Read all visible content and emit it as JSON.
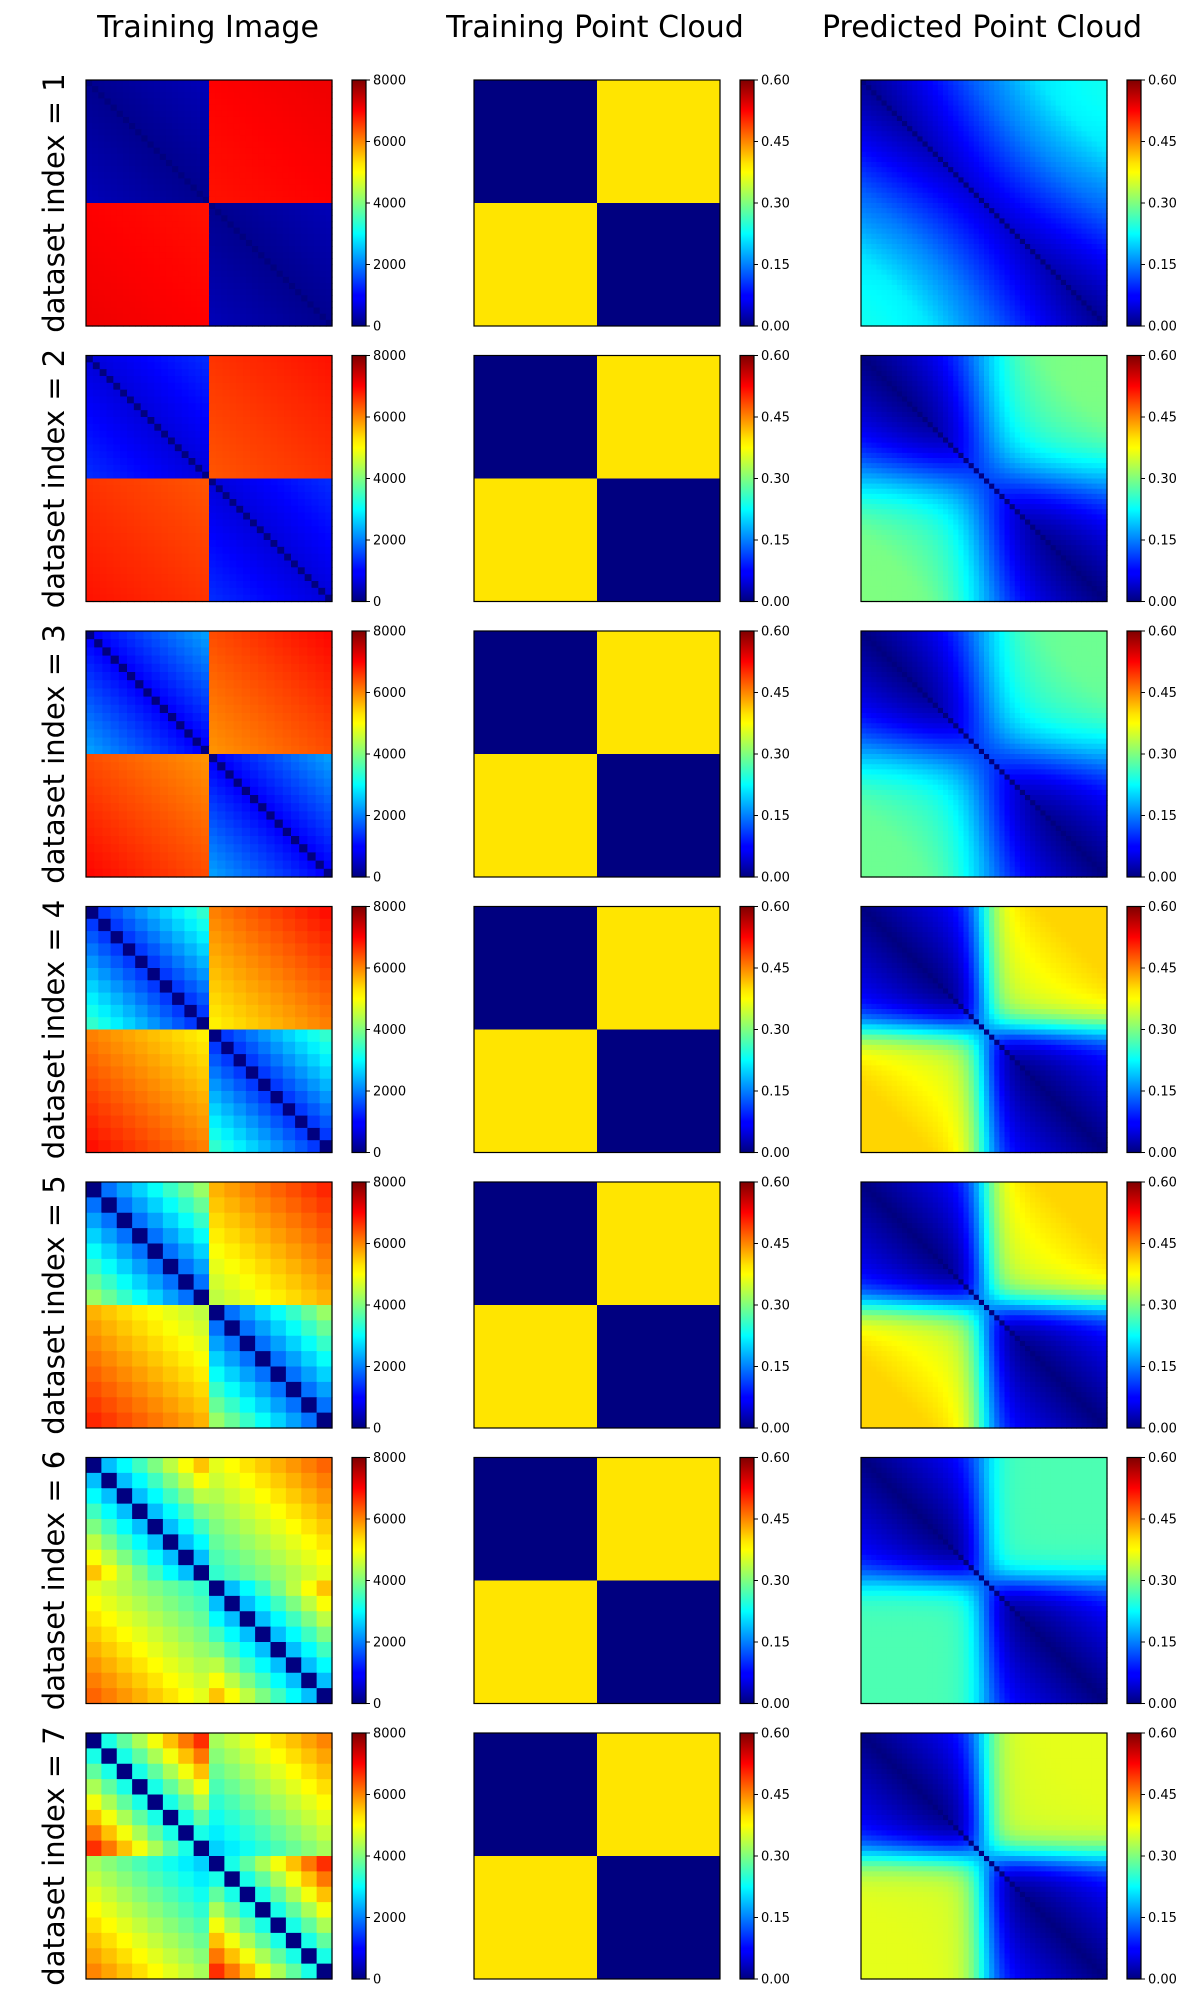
{
  "chart_data": {
    "type": "heatmap",
    "grid": false,
    "columns": [
      {
        "title": "Training Image",
        "colormap": "jet",
        "range": [
          0,
          8000
        ],
        "colorbar_ticks": [
          "0",
          "2000",
          "4000",
          "6000",
          "8000"
        ]
      },
      {
        "title": "Training Point Cloud",
        "colormap": "jet",
        "range": [
          0,
          0.6
        ],
        "colorbar_ticks": [
          "0.00",
          "0.15",
          "0.30",
          "0.45",
          "0.60"
        ]
      },
      {
        "title": "Predicted Point Cloud",
        "colormap": "jet",
        "range": [
          0,
          0.6
        ],
        "colorbar_ticks": [
          "0.00",
          "0.15",
          "0.30",
          "0.45",
          "0.60"
        ]
      }
    ],
    "rows": [
      {
        "label": "dataset index = 1",
        "image_block_count": 40,
        "image_diag_block_value": 120,
        "image_offdiag_value": 7000,
        "image_gradient": 300,
        "pc_diag_value": 0.0,
        "pc_offdiag_value": 0.39,
        "pred_offdiag_near": 0.1,
        "pred_offdiag_far": 0.25,
        "pred_transition": "diffuse"
      },
      {
        "label": "dataset index = 2",
        "image_block_count": 36,
        "image_diag_block_value": 700,
        "image_offdiag_value": 6600,
        "image_gradient": 600,
        "pc_diag_value": 0.0,
        "pc_offdiag_value": 0.39,
        "pred_offdiag_near": 0.23,
        "pred_offdiag_far": 0.3,
        "pred_transition": "smooth"
      },
      {
        "label": "dataset index = 3",
        "image_block_count": 30,
        "image_diag_block_value": 900,
        "image_offdiag_value": 6400,
        "image_gradient": 1300,
        "pc_diag_value": 0.0,
        "pc_offdiag_value": 0.39,
        "pred_offdiag_near": 0.23,
        "pred_offdiag_far": 0.29,
        "pred_transition": "smooth"
      },
      {
        "label": "dataset index = 4",
        "image_block_count": 20,
        "image_diag_block_value": 1200,
        "image_offdiag_value": 6000,
        "image_gradient": 2200,
        "pc_diag_value": 0.0,
        "pc_offdiag_value": 0.39,
        "pred_offdiag_near": 0.33,
        "pred_offdiag_far": 0.4,
        "pred_transition": "sharp"
      },
      {
        "label": "dataset index = 5",
        "image_block_count": 16,
        "image_diag_block_value": 1500,
        "image_offdiag_value": 5600,
        "image_gradient": 2800,
        "pc_diag_value": 0.0,
        "pc_offdiag_value": 0.39,
        "pred_offdiag_near": 0.33,
        "pred_offdiag_far": 0.4,
        "pred_transition": "sharp"
      },
      {
        "label": "dataset index = 6",
        "image_block_count": 16,
        "image_diag_block_value": 2000,
        "image_offdiag_value": 4800,
        "image_gradient": 3600,
        "pc_diag_value": 0.0,
        "pc_offdiag_value": 0.39,
        "pred_offdiag_near": 0.27,
        "pred_offdiag_far": 0.27,
        "pred_transition": "sharp"
      },
      {
        "label": "dataset index = 7",
        "image_block_count": 16,
        "image_diag_block_value": 2600,
        "image_offdiag_value": 4300,
        "image_gradient": 4200,
        "pc_diag_value": 0.0,
        "pc_offdiag_value": 0.39,
        "pred_offdiag_near": 0.35,
        "pred_offdiag_far": 0.36,
        "pred_transition": "sharp"
      }
    ]
  }
}
